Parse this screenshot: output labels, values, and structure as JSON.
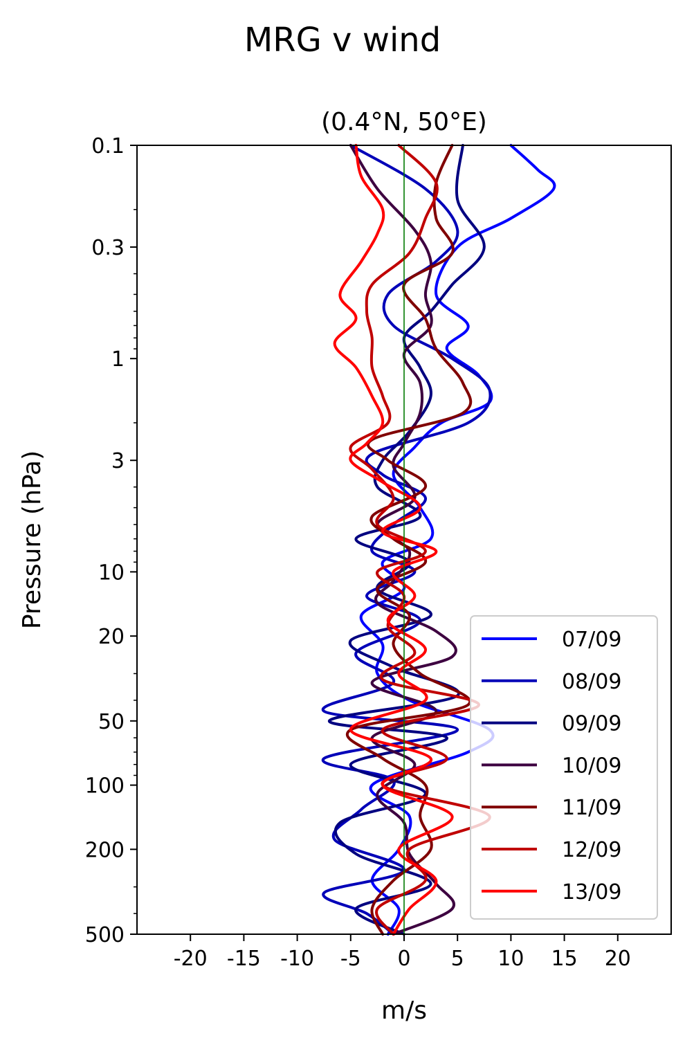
{
  "chart_data": {
    "type": "line",
    "title": "MRG v wind",
    "subtitle": "(0.4°N, 50°E)",
    "xlabel": "m/s",
    "ylabel": "Pressure (hPa)",
    "xlim": [
      -25,
      25
    ],
    "ylim": [
      500,
      0.1
    ],
    "yscale": "log",
    "x_ticks": [
      -20,
      -15,
      -10,
      -5,
      0,
      5,
      10,
      15,
      20
    ],
    "x_tick_labels": [
      "-20",
      "-15",
      "-10",
      "-5",
      "0",
      "5",
      "10",
      "15",
      "20"
    ],
    "y_ticks": [
      0.1,
      0.3,
      1,
      3,
      10,
      20,
      50,
      100,
      200,
      500
    ],
    "y_tick_labels": [
      "0.1",
      "0.3",
      "1",
      "3",
      "10",
      "20",
      "50",
      "100",
      "200",
      "500"
    ],
    "reference_line": {
      "x": 0,
      "color": "#007a00"
    },
    "legend_position": "lower-right",
    "series": [
      {
        "name": "07/09",
        "color": "#0000ff",
        "p": [
          0.1,
          0.13,
          0.16,
          0.22,
          0.3,
          0.5,
          0.7,
          0.9,
          1.2,
          1.6,
          2.0,
          2.6,
          3.5,
          5,
          7,
          9,
          12,
          16,
          22,
          30,
          40,
          55,
          70,
          100,
          140,
          200,
          280,
          380,
          500
        ],
        "v": [
          10,
          12.5,
          14,
          10,
          5,
          3,
          6,
          4,
          7,
          8,
          3.5,
          1,
          -1,
          1.5,
          2.5,
          -2,
          0,
          -4,
          -2,
          -2.5,
          0.5,
          8,
          6,
          -3,
          0.5,
          -0.5,
          -3,
          -0.5,
          -1.5
        ]
      },
      {
        "name": "08/09",
        "color": "#0000b8",
        "p": [
          0.1,
          0.16,
          0.25,
          0.35,
          0.5,
          0.7,
          1.0,
          1.4,
          2.0,
          2.8,
          3.5,
          4.5,
          6,
          8,
          10,
          13,
          17,
          24,
          33,
          45,
          55,
          75,
          95,
          130,
          180,
          250,
          320,
          400,
          500
        ],
        "v": [
          -5,
          2,
          5,
          3,
          -1.5,
          -1,
          4.5,
          8,
          6,
          -3,
          -2,
          2,
          -1,
          -3,
          1,
          -3.5,
          1.5,
          -4.5,
          -1,
          -7.5,
          5,
          -7.5,
          -1,
          -4,
          -6.5,
          0,
          -7.5,
          -3.5,
          -1
        ]
      },
      {
        "name": "09/09",
        "color": "#000080",
        "p": [
          0.1,
          0.18,
          0.3,
          0.45,
          0.6,
          0.8,
          1.1,
          1.5,
          2.2,
          3.0,
          4.0,
          5.5,
          7,
          9,
          12,
          16,
          21,
          28,
          38,
          50,
          60,
          80,
          110,
          150,
          210,
          290,
          380,
          500
        ],
        "v": [
          5.5,
          5,
          7.5,
          4.5,
          2.5,
          0,
          1.5,
          2.5,
          0.5,
          -2,
          -2.5,
          1.5,
          -4.5,
          0.5,
          -2.5,
          2.5,
          -5,
          -1,
          5,
          -7,
          4,
          -5,
          2,
          -6,
          -4.5,
          2.5,
          -4.5,
          0
        ]
      },
      {
        "name": "10/09",
        "color": "#3d0040",
        "p": [
          0.1,
          0.16,
          0.25,
          0.35,
          0.5,
          0.7,
          0.95,
          1.3,
          1.8,
          2.5,
          3.2,
          4.5,
          6,
          8,
          11,
          14,
          19,
          25,
          33,
          45,
          60,
          80,
          110,
          150,
          210,
          290,
          380,
          500
        ],
        "v": [
          -5,
          -2.5,
          1,
          2.5,
          2,
          2.5,
          0,
          1.5,
          1.5,
          0,
          -1,
          1,
          -2.5,
          0.5,
          -1,
          -2.5,
          3,
          4.5,
          -3,
          3,
          -3,
          1,
          -2.5,
          0,
          0.5,
          3,
          4.5,
          -1
        ]
      },
      {
        "name": "11/09",
        "color": "#800000",
        "p": [
          0.1,
          0.15,
          0.22,
          0.32,
          0.45,
          0.65,
          0.9,
          1.3,
          1.8,
          2.4,
          3.0,
          4.0,
          5.5,
          7,
          9,
          12,
          16,
          22,
          30,
          42,
          55,
          75,
          100,
          140,
          200,
          280,
          380,
          500
        ],
        "v": [
          4.5,
          3,
          3,
          4.5,
          0,
          2,
          3,
          5.5,
          5.5,
          -3,
          -1.5,
          2,
          -3,
          -1,
          2,
          -2.5,
          0.5,
          -1,
          1.5,
          6,
          -5,
          -2,
          2,
          1.5,
          2.5,
          -1,
          -3,
          -2
        ]
      },
      {
        "name": "12/09",
        "color": "#c00000",
        "p": [
          0.1,
          0.15,
          0.22,
          0.32,
          0.45,
          0.6,
          0.8,
          1.1,
          1.5,
          2.0,
          2.6,
          3.3,
          4.5,
          6,
          8,
          10,
          13,
          18,
          24,
          32,
          42,
          55,
          75,
          100,
          140,
          200,
          280,
          380,
          500
        ],
        "v": [
          -0.5,
          3,
          2,
          0.5,
          -3,
          -3.5,
          -3,
          -3,
          -2,
          -1.5,
          -5,
          -3,
          -1,
          -2.5,
          2,
          -2.5,
          0,
          -1.5,
          1,
          -2,
          7,
          -2,
          4,
          -2,
          8,
          0.5,
          2,
          -2.5,
          -1
        ]
      },
      {
        "name": "13/09",
        "color": "#ff0000",
        "p": [
          0.1,
          0.14,
          0.2,
          0.26,
          0.35,
          0.5,
          0.65,
          0.85,
          1.1,
          1.5,
          2.0,
          2.5,
          3.0,
          3.8,
          5,
          6.5,
          8,
          10,
          13,
          17,
          23,
          30,
          40,
          55,
          75,
          100,
          140,
          200,
          280,
          380,
          500
        ],
        "v": [
          -4.5,
          -4,
          -2,
          -2.5,
          -4,
          -6,
          -4.5,
          -6.5,
          -4.5,
          -3,
          -2,
          -3.5,
          -5,
          -2,
          1.5,
          -2,
          3,
          -1,
          1,
          -1.5,
          2,
          -0.5,
          2,
          -5,
          2.5,
          -2,
          4.5,
          -0.5,
          3,
          0.5,
          -1
        ]
      }
    ]
  }
}
